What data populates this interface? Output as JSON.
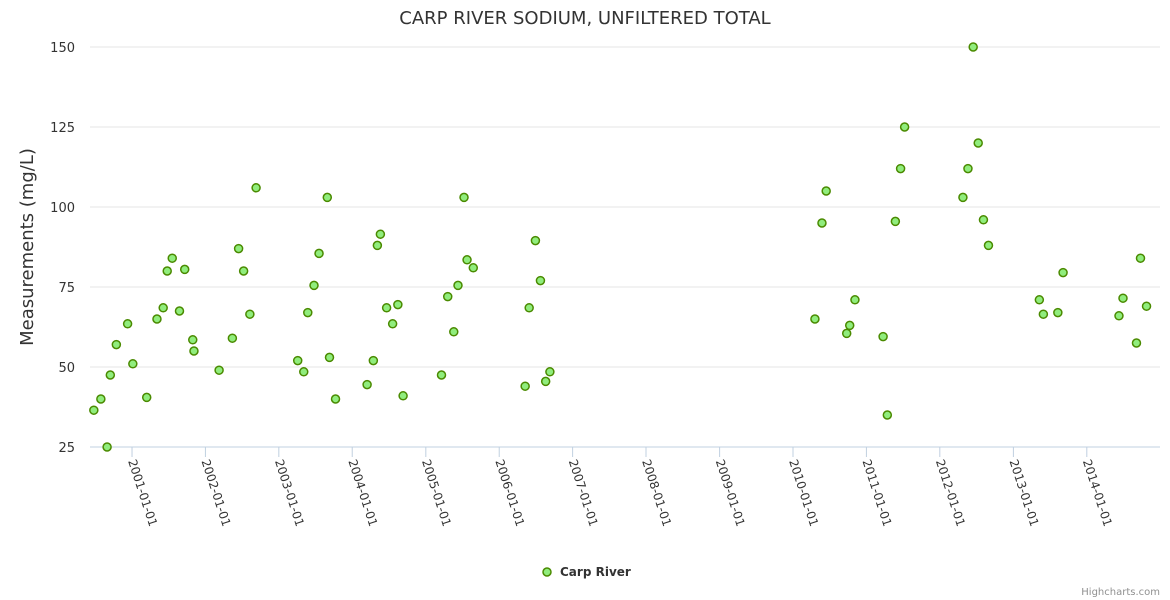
{
  "chart_data": {
    "type": "scatter",
    "title": "CARP RIVER SODIUM, UNFILTERED TOTAL",
    "ylabel": "Measurements (mg/L)",
    "xlabel": "",
    "x_axis_type": "datetime",
    "xlim": [
      "2000-06-06",
      "2014-12-31"
    ],
    "ylim": [
      25,
      150
    ],
    "yticks": [
      25,
      50,
      75,
      100,
      125,
      150
    ],
    "xticks": [
      "2001-01-01",
      "2002-01-01",
      "2003-01-01",
      "2004-01-01",
      "2005-01-01",
      "2006-01-01",
      "2007-01-01",
      "2008-01-01",
      "2009-01-01",
      "2010-01-01",
      "2011-01-01",
      "2012-01-01",
      "2013-01-01",
      "2014-01-01"
    ],
    "grid": true,
    "legend_position": "bottom-center",
    "series": [
      {
        "name": "Carp River",
        "color": "#90ed7d",
        "stroke": "#4a8a00",
        "points": [
          [
            "2000-06-25",
            36.5
          ],
          [
            "2000-07-30",
            40
          ],
          [
            "2000-08-30",
            25
          ],
          [
            "2000-09-15",
            47.5
          ],
          [
            "2000-10-15",
            57
          ],
          [
            "2000-12-10",
            63.5
          ],
          [
            "2001-01-05",
            51
          ],
          [
            "2001-03-15",
            40.5
          ],
          [
            "2001-05-05",
            65
          ],
          [
            "2001-06-05",
            68.5
          ],
          [
            "2001-06-25",
            80
          ],
          [
            "2001-07-20",
            84
          ],
          [
            "2001-08-25",
            67.5
          ],
          [
            "2001-09-20",
            80.5
          ],
          [
            "2001-10-30",
            58.5
          ],
          [
            "2001-11-05",
            55
          ],
          [
            "2002-03-10",
            49
          ],
          [
            "2002-05-15",
            59
          ],
          [
            "2002-06-15",
            87
          ],
          [
            "2002-07-10",
            80
          ],
          [
            "2002-08-10",
            66.5
          ],
          [
            "2002-09-10",
            106
          ],
          [
            "2003-04-05",
            52
          ],
          [
            "2003-05-05",
            48.5
          ],
          [
            "2003-05-25",
            67
          ],
          [
            "2003-06-25",
            75.5
          ],
          [
            "2003-07-20",
            85.5
          ],
          [
            "2003-08-30",
            103
          ],
          [
            "2003-09-10",
            53
          ],
          [
            "2003-10-10",
            40
          ],
          [
            "2004-03-15",
            44.5
          ],
          [
            "2004-04-15",
            52
          ],
          [
            "2004-05-05",
            88
          ],
          [
            "2004-05-20",
            91.5
          ],
          [
            "2004-06-20",
            68.5
          ],
          [
            "2004-07-20",
            63.5
          ],
          [
            "2004-08-15",
            69.5
          ],
          [
            "2004-09-10",
            41
          ],
          [
            "2005-03-20",
            47.5
          ],
          [
            "2005-04-20",
            72
          ],
          [
            "2005-05-20",
            61
          ],
          [
            "2005-06-10",
            75.5
          ],
          [
            "2005-07-10",
            103
          ],
          [
            "2005-07-25",
            83.5
          ],
          [
            "2005-08-25",
            81
          ],
          [
            "2006-05-10",
            44
          ],
          [
            "2006-05-30",
            68.5
          ],
          [
            "2006-06-30",
            89.5
          ],
          [
            "2006-07-25",
            77
          ],
          [
            "2006-08-20",
            45.5
          ],
          [
            "2006-09-10",
            48.5
          ],
          [
            "2010-04-20",
            65
          ],
          [
            "2010-05-25",
            95
          ],
          [
            "2010-06-15",
            105
          ],
          [
            "2010-09-25",
            60.5
          ],
          [
            "2010-10-10",
            63
          ],
          [
            "2010-11-05",
            71
          ],
          [
            "2011-03-25",
            59.5
          ],
          [
            "2011-04-15",
            35
          ],
          [
            "2011-05-25",
            95.5
          ],
          [
            "2011-06-20",
            112
          ],
          [
            "2011-07-10",
            125
          ],
          [
            "2012-04-25",
            103
          ],
          [
            "2012-05-20",
            112
          ],
          [
            "2012-06-15",
            150
          ],
          [
            "2012-07-10",
            120
          ],
          [
            "2012-08-05",
            96
          ],
          [
            "2012-08-30",
            88
          ],
          [
            "2013-05-10",
            71
          ],
          [
            "2013-05-30",
            66.5
          ],
          [
            "2013-08-10",
            67
          ],
          [
            "2013-09-05",
            79.5
          ],
          [
            "2014-06-10",
            66
          ],
          [
            "2014-06-30",
            71.5
          ],
          [
            "2014-09-05",
            57.5
          ],
          [
            "2014-09-25",
            84
          ],
          [
            "2014-10-25",
            69
          ]
        ]
      }
    ],
    "credits": "Highcharts.com"
  }
}
